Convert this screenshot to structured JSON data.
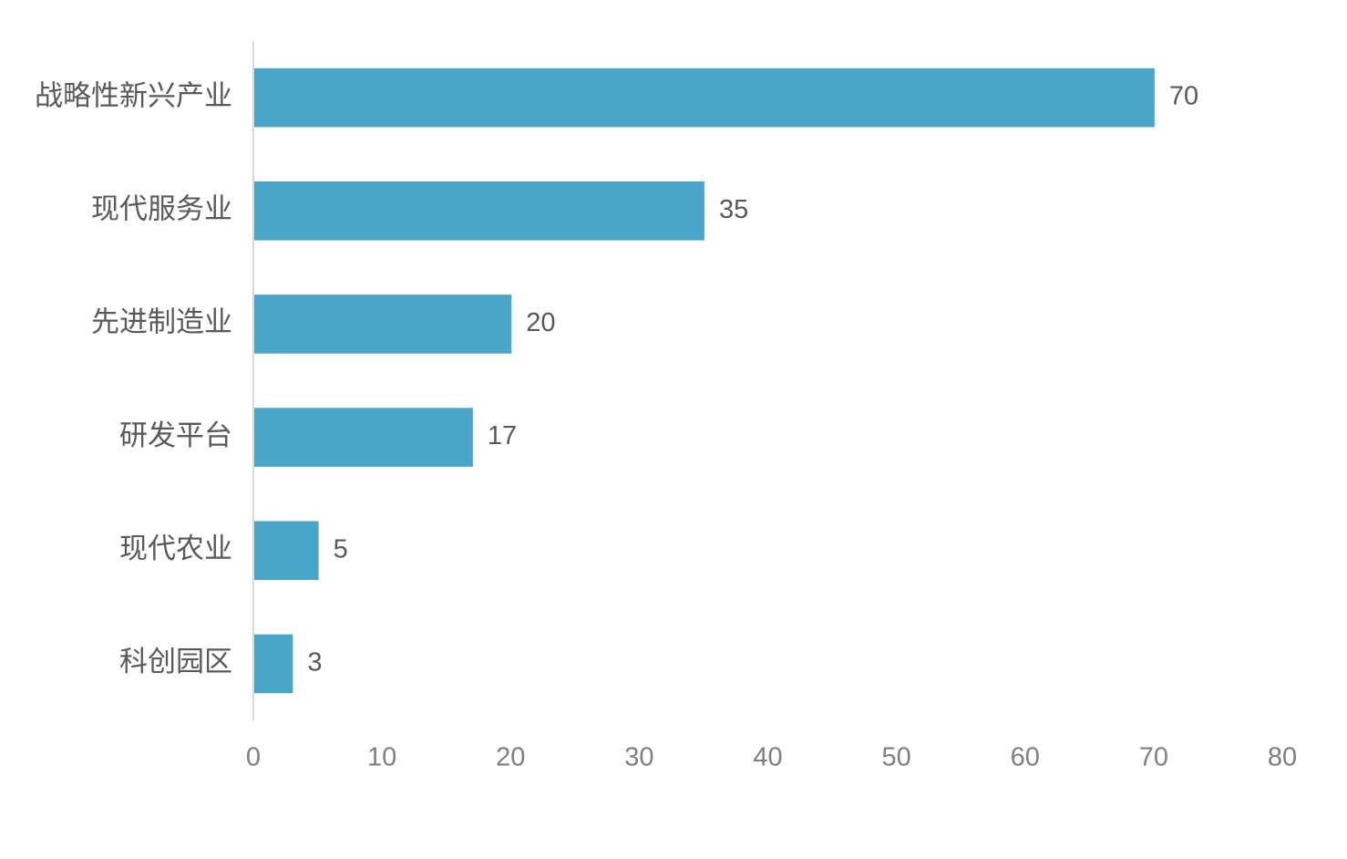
{
  "chart_data": {
    "type": "bar",
    "orientation": "horizontal",
    "categories": [
      "战略性新兴产业",
      "现代服务业",
      "先进制造业",
      "研发平台",
      "现代农业",
      "科创园区"
    ],
    "values": [
      70,
      35,
      20,
      17,
      5,
      3
    ],
    "color": "#4aa6c9",
    "xlim": [
      0,
      80
    ],
    "xticks": [
      0,
      10,
      20,
      30,
      40,
      50,
      60,
      70,
      80
    ],
    "grid": false
  }
}
